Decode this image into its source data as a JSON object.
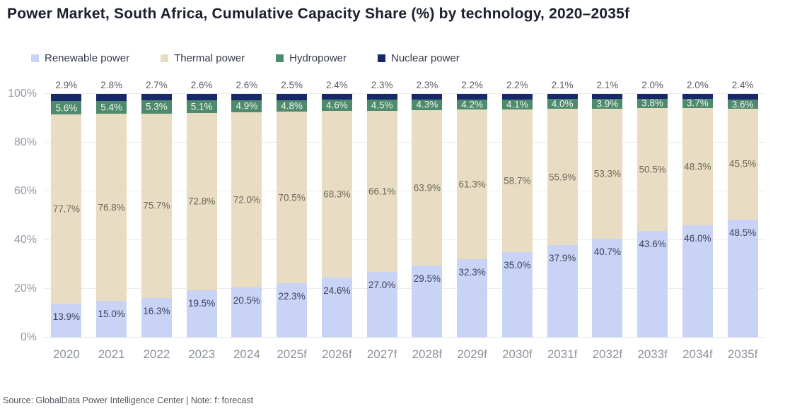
{
  "title": "Power Market, South Africa, Cumulative Capacity Share (%) by technology, 2020–2035f",
  "footer": "Source: GlobalData Power Intelligence Center | Note: f: forecast",
  "colors": {
    "background": "#ffffff",
    "gridline": "#ececec",
    "axis_text": "#959aa5",
    "title_text": "#1b1f2e"
  },
  "chart_data": {
    "type": "bar",
    "stacked": true,
    "title": "Power Market, South Africa, Cumulative Capacity Share (%) by technology, 2020–2035f",
    "xlabel": "",
    "ylabel": "",
    "ylim": [
      0,
      100
    ],
    "grid": true,
    "legend_position": "top",
    "y_ticks": [
      {
        "value": 0,
        "label": "0%"
      },
      {
        "value": 20,
        "label": "20%"
      },
      {
        "value": 40,
        "label": "40%"
      },
      {
        "value": 60,
        "label": "60%"
      },
      {
        "value": 80,
        "label": "80%"
      },
      {
        "value": 100,
        "label": "100%"
      }
    ],
    "categories": [
      "2020",
      "2021",
      "2022",
      "2023",
      "2024",
      "2025f",
      "2026f",
      "2027f",
      "2028f",
      "2029f",
      "2030f",
      "2031f",
      "2032f",
      "2033f",
      "2034f",
      "2035f"
    ],
    "series": [
      {
        "key": "renewable",
        "name": "Renewable power",
        "color": "#c9d3f6",
        "label_color": "#3c4257",
        "label_position": "inside-top",
        "values": [
          13.9,
          15.0,
          16.3,
          19.5,
          20.5,
          22.3,
          24.6,
          27.0,
          29.5,
          32.3,
          35.0,
          37.9,
          40.7,
          43.6,
          46.0,
          48.5
        ],
        "labels": [
          "13.9%",
          "15.0%",
          "16.3%",
          "19.5%",
          "20.5%",
          "22.3%",
          "24.6%",
          "27.0%",
          "29.5%",
          "32.3%",
          "35.0%",
          "37.9%",
          "40.7%",
          "43.6%",
          "46.0%",
          "48.5%"
        ]
      },
      {
        "key": "thermal",
        "name": "Thermal power",
        "color": "#e8dcc2",
        "label_color": "#6d685c",
        "label_position": "center",
        "values": [
          77.7,
          76.8,
          75.7,
          72.8,
          72.0,
          70.5,
          68.3,
          66.1,
          63.9,
          61.3,
          58.7,
          55.9,
          53.3,
          50.5,
          48.3,
          45.5
        ],
        "labels": [
          "77.7%",
          "76.8%",
          "75.7%",
          "72.8%",
          "72.0%",
          "70.5%",
          "68.3%",
          "66.1%",
          "63.9%",
          "61.3%",
          "58.7%",
          "55.9%",
          "53.3%",
          "50.5%",
          "48.3%",
          "45.5%"
        ]
      },
      {
        "key": "hydro",
        "name": "Hydropower",
        "color": "#4e8a6c",
        "label_color": "#f0f4f1",
        "label_position": "center",
        "values": [
          5.6,
          5.4,
          5.3,
          5.1,
          4.9,
          4.8,
          4.6,
          4.5,
          4.3,
          4.2,
          4.1,
          4.0,
          3.9,
          3.8,
          3.7,
          3.6
        ],
        "labels": [
          "5.6%",
          "5.4%",
          "5.3%",
          "5.1%",
          "4.9%",
          "4.8%",
          "4.6%",
          "4.5%",
          "4.3%",
          "4.2%",
          "4.1%",
          "4.0%",
          "3.9%",
          "3.8%",
          "3.7%",
          "3.6%"
        ]
      },
      {
        "key": "nuclear",
        "name": "Nuclear power",
        "color": "#17296b",
        "label_color": "#575c66",
        "label_position": "above",
        "values": [
          2.9,
          2.8,
          2.7,
          2.6,
          2.6,
          2.5,
          2.4,
          2.3,
          2.3,
          2.2,
          2.2,
          2.1,
          2.1,
          2.0,
          2.0,
          2.4
        ],
        "labels": [
          "2.9%",
          "2.8%",
          "2.7%",
          "2.6%",
          "2.6%",
          "2.5%",
          "2.4%",
          "2.3%",
          "2.3%",
          "2.2%",
          "2.2%",
          "2.1%",
          "2.1%",
          "2.0%",
          "2.0%",
          "2.4%"
        ]
      }
    ]
  }
}
